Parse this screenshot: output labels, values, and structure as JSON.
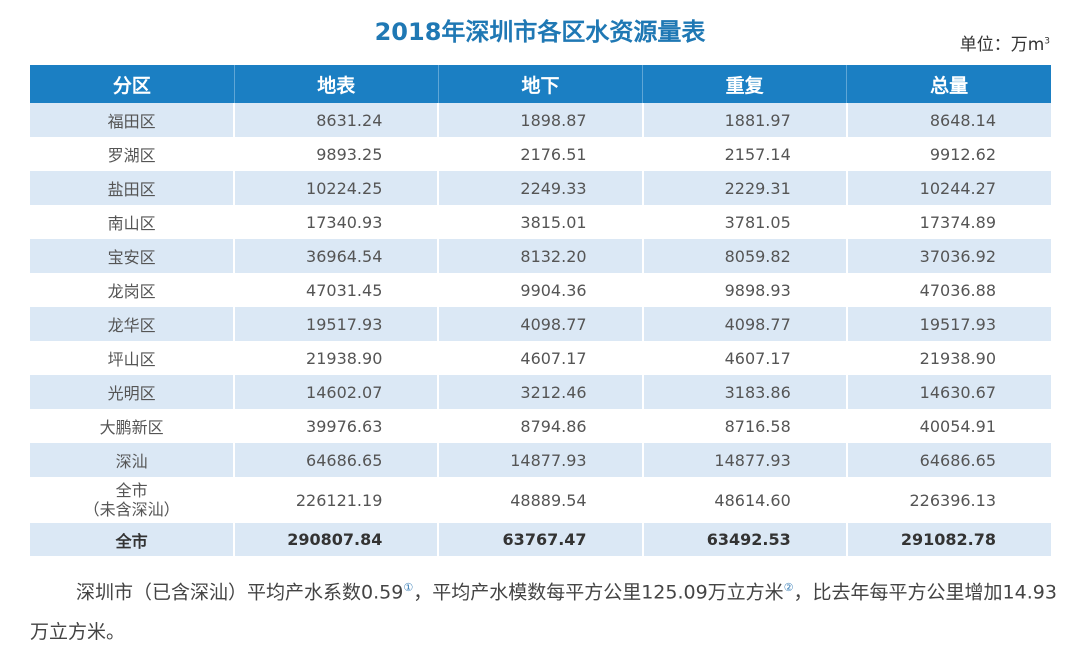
{
  "title": "2018年深圳市各区水资源量表",
  "unit": "单位：万m",
  "unit_sup": "3",
  "header_color": "#1b7fc3",
  "band_color": "#dbe8f5",
  "columns": [
    "分区",
    "地表",
    "地下",
    "重复",
    "总量"
  ],
  "rows": [
    [
      "福田区",
      "8631.24",
      "1898.87",
      "1881.97",
      "8648.14"
    ],
    [
      "罗湖区",
      "9893.25",
      "2176.51",
      "2157.14",
      "9912.62"
    ],
    [
      "盐田区",
      "10224.25",
      "2249.33",
      "2229.31",
      "10244.27"
    ],
    [
      "南山区",
      "17340.93",
      "3815.01",
      "3781.05",
      "17374.89"
    ],
    [
      "宝安区",
      "36964.54",
      "8132.20",
      "8059.82",
      "37036.92"
    ],
    [
      "龙岗区",
      "47031.45",
      "9904.36",
      "9898.93",
      "47036.88"
    ],
    [
      "龙华区",
      "19517.93",
      "4098.77",
      "4098.77",
      "19517.93"
    ],
    [
      "坪山区",
      "21938.90",
      "4607.17",
      "4607.17",
      "21938.90"
    ],
    [
      "光明区",
      "14602.07",
      "3212.46",
      "3183.86",
      "14630.67"
    ],
    [
      "大鹏新区",
      "39976.63",
      "8794.86",
      "8716.58",
      "40054.91"
    ],
    [
      "深汕",
      "64686.65",
      "14877.93",
      "14877.93",
      "64686.65"
    ]
  ],
  "subtotal": {
    "name_line1": "全市",
    "name_line2": "（未含深汕）",
    "values": [
      "226121.19",
      "48889.54",
      "48614.60",
      "226396.13"
    ]
  },
  "total": [
    "全市",
    "290807.84",
    "63767.47",
    "63492.53",
    "291082.78"
  ],
  "note": {
    "part1": "深圳市（已含深汕）平均产水系数0.59",
    "sup1": "①",
    "part2": "，平均产水模数每平方公里125.09万立方米",
    "sup2": "②",
    "part3": "，比去年每平方公里增加14.93万立方米。"
  }
}
